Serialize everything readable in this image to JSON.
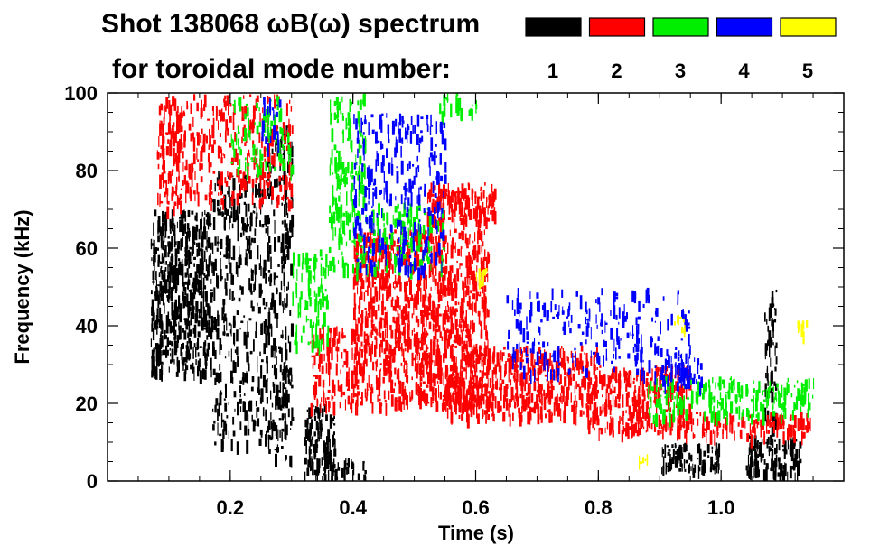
{
  "chart_data": {
    "type": "heatmap",
    "title_line1": "Shot 138068 ωB(ω) spectrum",
    "title_line2": "for toroidal mode number:",
    "xlabel": "Time (s)",
    "ylabel": "Frequency (kHz)",
    "xlim": [
      0.0,
      1.2
    ],
    "ylim": [
      0,
      100
    ],
    "xticks": [
      {
        "value": 0.2,
        "label": "0.2"
      },
      {
        "value": 0.4,
        "label": "0.4"
      },
      {
        "value": 0.6,
        "label": "0.6"
      },
      {
        "value": 0.8,
        "label": "0.8"
      },
      {
        "value": 1.0,
        "label": "1.0"
      }
    ],
    "yticks": [
      {
        "value": 0,
        "label": "0"
      },
      {
        "value": 20,
        "label": "20"
      },
      {
        "value": 40,
        "label": "40"
      },
      {
        "value": 60,
        "label": "60"
      },
      {
        "value": 80,
        "label": "80"
      },
      {
        "value": 100,
        "label": "100"
      }
    ],
    "legend": [
      {
        "mode": "1",
        "color": "#000000"
      },
      {
        "mode": "2",
        "color": "#ff0000"
      },
      {
        "mode": "3",
        "color": "#00ee00"
      },
      {
        "mode": "4",
        "color": "#0000ff"
      },
      {
        "mode": "5",
        "color": "#ffff00"
      }
    ],
    "series": [
      {
        "name": "n=1",
        "color": "#000000",
        "blobs": [
          {
            "t0": 0.07,
            "t1": 0.17,
            "f0": 28,
            "f1": 70,
            "density": 0.85
          },
          {
            "t0": 0.17,
            "t1": 0.26,
            "f0": 10,
            "f1": 80,
            "density": 0.35
          },
          {
            "t0": 0.26,
            "t1": 0.3,
            "f0": 5,
            "f1": 92,
            "density": 0.45
          },
          {
            "t0": 0.32,
            "t1": 0.37,
            "f0": 2,
            "f1": 20,
            "density": 0.8
          },
          {
            "t0": 0.35,
            "t1": 0.42,
            "f0": 1,
            "f1": 6,
            "density": 0.7
          },
          {
            "t0": 0.9,
            "t1": 1.0,
            "f0": 3,
            "f1": 10,
            "density": 0.8
          },
          {
            "t0": 1.04,
            "t1": 1.13,
            "f0": 2,
            "f1": 12,
            "density": 0.85
          },
          {
            "t0": 1.07,
            "t1": 1.09,
            "f0": 10,
            "f1": 50,
            "density": 0.5
          }
        ]
      },
      {
        "name": "n=2",
        "color": "#ff0000",
        "blobs": [
          {
            "t0": 0.08,
            "t1": 0.12,
            "f0": 70,
            "f1": 100,
            "density": 0.6
          },
          {
            "t0": 0.12,
            "t1": 0.3,
            "f0": 72,
            "f1": 100,
            "density": 0.35
          },
          {
            "t0": 0.33,
            "t1": 0.4,
            "f0": 20,
            "f1": 40,
            "density": 0.5
          },
          {
            "t0": 0.4,
            "t1": 0.62,
            "f0": 20,
            "f1": 65,
            "density": 0.75
          },
          {
            "t0": 0.52,
            "t1": 0.63,
            "f0": 67,
            "f1": 77,
            "density": 0.9
          },
          {
            "t0": 0.55,
            "t1": 0.8,
            "f0": 17,
            "f1": 35,
            "density": 0.7
          },
          {
            "t0": 0.78,
            "t1": 0.95,
            "f0": 13,
            "f1": 30,
            "density": 0.7
          },
          {
            "t0": 0.93,
            "t1": 1.15,
            "f0": 12,
            "f1": 18,
            "density": 0.6
          }
        ]
      },
      {
        "name": "n=3",
        "color": "#00ee00",
        "blobs": [
          {
            "t0": 0.2,
            "t1": 0.3,
            "f0": 80,
            "f1": 100,
            "density": 0.3
          },
          {
            "t0": 0.3,
            "t1": 0.36,
            "f0": 35,
            "f1": 60,
            "density": 0.4
          },
          {
            "t0": 0.36,
            "t1": 0.42,
            "f0": 55,
            "f1": 100,
            "density": 0.45
          },
          {
            "t0": 0.42,
            "t1": 0.55,
            "f0": 55,
            "f1": 72,
            "density": 0.35
          },
          {
            "t0": 0.54,
            "t1": 0.6,
            "f0": 95,
            "f1": 100,
            "density": 0.6
          },
          {
            "t0": 0.88,
            "t1": 1.15,
            "f0": 17,
            "f1": 27,
            "density": 0.5
          }
        ]
      },
      {
        "name": "n=4",
        "color": "#0000ff",
        "blobs": [
          {
            "t0": 0.25,
            "t1": 0.28,
            "f0": 85,
            "f1": 100,
            "density": 0.3
          },
          {
            "t0": 0.4,
            "t1": 0.55,
            "f0": 55,
            "f1": 95,
            "density": 0.3
          },
          {
            "t0": 0.65,
            "t1": 0.95,
            "f0": 28,
            "f1": 50,
            "density": 0.25
          },
          {
            "t0": 0.9,
            "t1": 0.97,
            "f0": 25,
            "f1": 33,
            "density": 0.6
          }
        ]
      },
      {
        "name": "n=5",
        "color": "#ffff00",
        "blobs": [
          {
            "t0": 0.6,
            "t1": 0.62,
            "f0": 50,
            "f1": 55,
            "density": 0.6
          },
          {
            "t0": 0.86,
            "t1": 0.88,
            "f0": 5,
            "f1": 8,
            "density": 0.5
          },
          {
            "t0": 0.92,
            "t1": 0.94,
            "f0": 39,
            "f1": 43,
            "density": 0.6
          },
          {
            "t0": 1.12,
            "t1": 1.14,
            "f0": 38,
            "f1": 42,
            "density": 0.6
          }
        ]
      }
    ]
  }
}
